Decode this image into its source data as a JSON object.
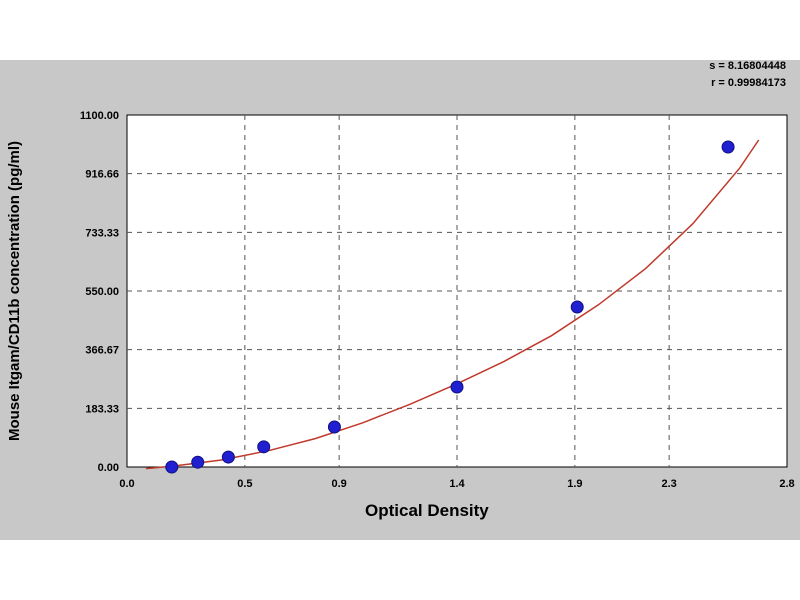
{
  "stats": {
    "s_line": "s = 8.16804448",
    "r_line": "r = 0.99984173"
  },
  "chart_data": {
    "type": "scatter",
    "title": "",
    "xlabel": "Optical Density",
    "ylabel": "Mouse Itgam/CD11b  concentration (pg/ml)",
    "xlim": [
      0.0,
      2.8
    ],
    "ylim": [
      0,
      1100
    ],
    "x_ticks": [
      0.0,
      0.5,
      0.9,
      1.4,
      1.9,
      2.3,
      2.8
    ],
    "x_tick_labels": [
      "0.0",
      "0.5",
      "0.9",
      "1.4",
      "1.9",
      "2.3",
      "2.8"
    ],
    "y_ticks": [
      0,
      183.33,
      366.67,
      550,
      733.33,
      916.66,
      1100
    ],
    "y_tick_labels": [
      "0.00",
      "183.33",
      "366.67",
      "550.00",
      "733.33",
      "916.66",
      "1100.00"
    ],
    "grid": true,
    "colors": {
      "points": "#2020d0",
      "curve": "#c0392b",
      "background": "#c8c8c8"
    },
    "series": [
      {
        "type": "scatter",
        "x": [
          0.19,
          0.3,
          0.43,
          0.58,
          0.88,
          1.4,
          1.91,
          2.55
        ],
        "y": [
          0,
          15,
          31,
          63,
          125,
          250,
          500,
          1000
        ]
      }
    ],
    "fit_curve": {
      "type": "line",
      "x": [
        0.08,
        0.2,
        0.4,
        0.6,
        0.8,
        1.0,
        1.2,
        1.4,
        1.6,
        1.8,
        2.0,
        2.2,
        2.4,
        2.6,
        2.68
      ],
      "y": [
        -5,
        3,
        22,
        51,
        89,
        138,
        196,
        260,
        330,
        410,
        507,
        620,
        760,
        935,
        1022
      ]
    }
  }
}
